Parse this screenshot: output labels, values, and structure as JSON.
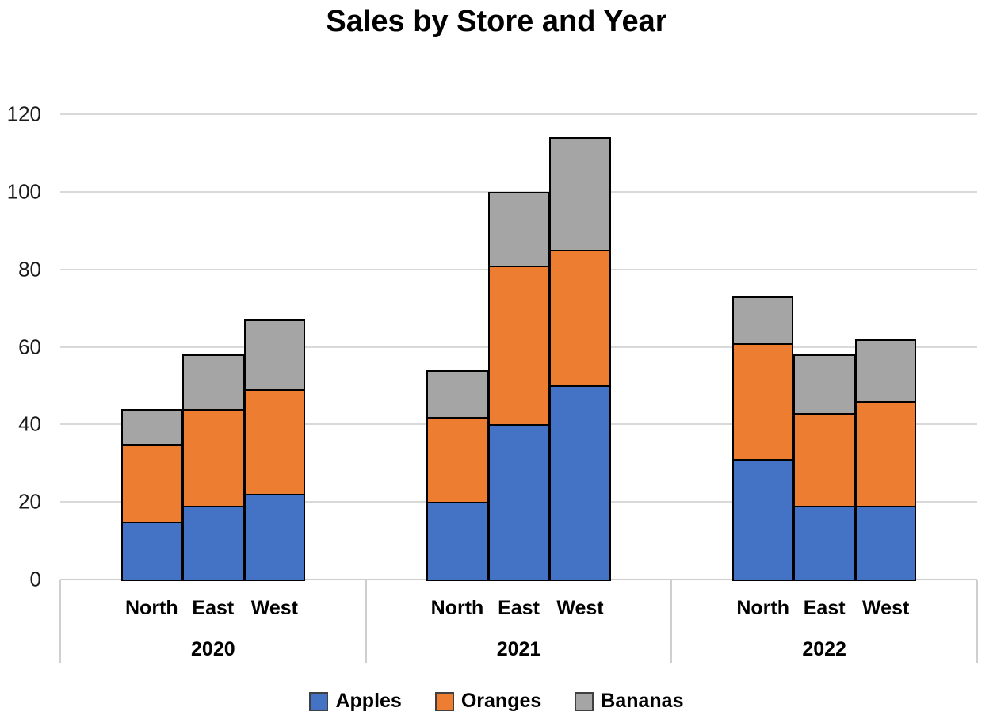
{
  "title": "Sales by Store and Year",
  "chart_data": {
    "type": "bar",
    "stacked": true,
    "title": "Sales by Store and Year",
    "group_labels": [
      "2020",
      "2021",
      "2022"
    ],
    "categories": [
      "North",
      "East",
      "West"
    ],
    "series": [
      {
        "name": "Apples",
        "color": "#4472C4",
        "values": [
          [
            15,
            19,
            22
          ],
          [
            20,
            40,
            50
          ],
          [
            31,
            19,
            19
          ]
        ]
      },
      {
        "name": "Oranges",
        "color": "#ED7D31",
        "values": [
          [
            20,
            25,
            27
          ],
          [
            22,
            41,
            35
          ],
          [
            30,
            24,
            27
          ]
        ]
      },
      {
        "name": "Bananas",
        "color": "#A5A5A5",
        "values": [
          [
            9,
            14,
            18
          ],
          [
            12,
            19,
            29
          ],
          [
            12,
            15,
            16
          ]
        ]
      }
    ],
    "stack_totals": [
      [
        44,
        58,
        67
      ],
      [
        54,
        100,
        114
      ],
      [
        73,
        58,
        62
      ]
    ],
    "ylim": [
      0,
      120
    ],
    "yticks": [
      0,
      20,
      40,
      60,
      80,
      100,
      120
    ],
    "grid": true,
    "legend_position": "bottom",
    "legend_entries": [
      "Apples",
      "Oranges",
      "Bananas"
    ]
  },
  "colors": {
    "apples": "#4472C4",
    "oranges": "#ED7D31",
    "bananas": "#A5A5A5",
    "bar_border": "#000000",
    "gridline": "#D9D9D9",
    "axis_line": "#D0CECE",
    "text": "#000000"
  }
}
